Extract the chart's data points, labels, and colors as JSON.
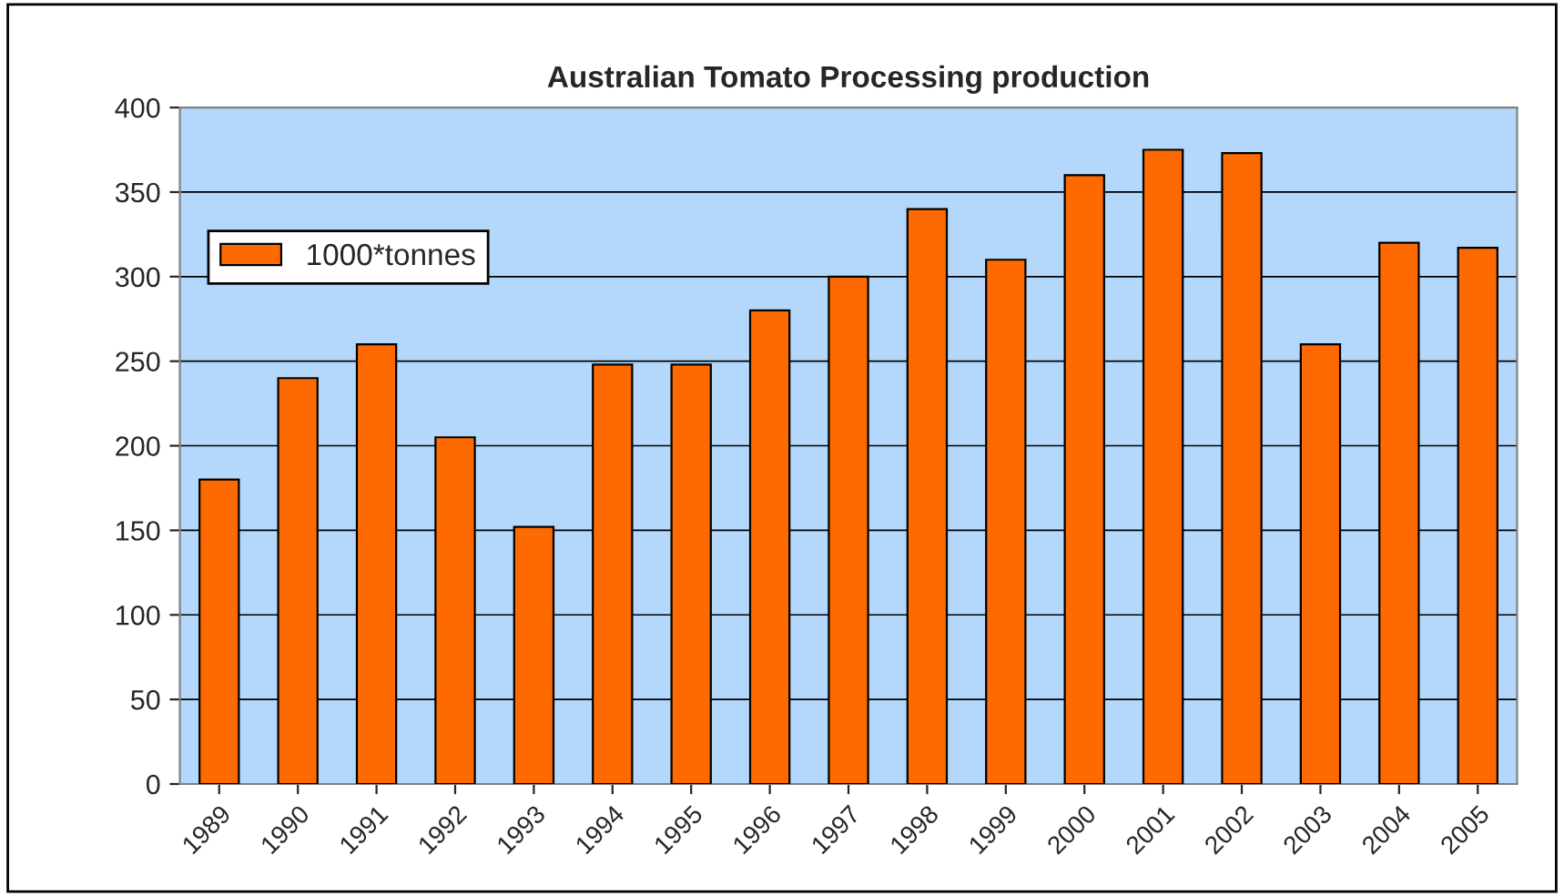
{
  "chart_data": {
    "type": "bar",
    "title": "Australian Tomato Processing production",
    "categories": [
      "1989",
      "1990",
      "1991",
      "1992",
      "1993",
      "1994",
      "1995",
      "1996",
      "1997",
      "1998",
      "1999",
      "2000",
      "2001",
      "2002",
      "2003",
      "2004",
      "2005"
    ],
    "series": [
      {
        "name": "1000*tonnes",
        "color": "#ff6a00",
        "values": [
          180,
          240,
          260,
          205,
          152,
          248,
          248,
          280,
          300,
          340,
          310,
          360,
          375,
          373,
          260,
          320,
          317
        ]
      }
    ],
    "ylim": [
      0,
      400
    ],
    "yticks": [
      0,
      50,
      100,
      150,
      200,
      250,
      300,
      350,
      400
    ],
    "grid": "y",
    "legend": "top left"
  }
}
